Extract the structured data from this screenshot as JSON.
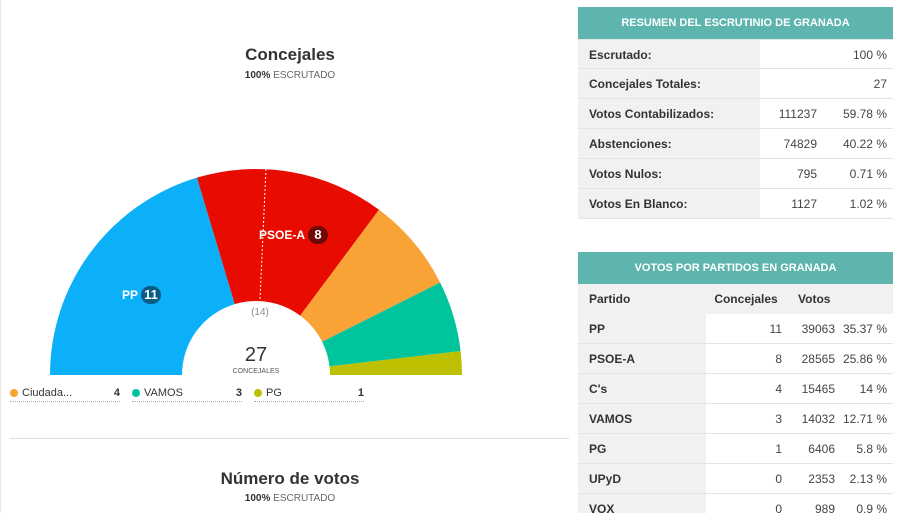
{
  "seats_chart": {
    "title": "Concejales",
    "scrutiny_pct": "100%",
    "scrutiny_label": "ESCRUTADO",
    "total_seats": "27",
    "total_label": "CONCEJALES",
    "majority": "(14)",
    "labels": [
      {
        "party": "PP",
        "seats": "11"
      },
      {
        "party": "PSOE-A",
        "seats": "8"
      }
    ]
  },
  "chart_data": {
    "type": "pie",
    "subtype": "hemicycle",
    "title": "Concejales",
    "total": 27,
    "majority": 14,
    "series": [
      {
        "name": "PP",
        "value": 11,
        "color": "#0cb0f8"
      },
      {
        "name": "PSOE-A",
        "value": 8,
        "color": "#e80c00"
      },
      {
        "name": "C's",
        "value": 4,
        "color": "#f9a236"
      },
      {
        "name": "VAMOS",
        "value": 3,
        "color": "#00c59c"
      },
      {
        "name": "PG",
        "value": 1,
        "color": "#bcc000"
      }
    ]
  },
  "legend": [
    {
      "name": "Ciudada...",
      "seats": "4",
      "color": "#f9a236"
    },
    {
      "name": "VAMOS",
      "seats": "3",
      "color": "#00c59c"
    },
    {
      "name": "PG",
      "seats": "1",
      "color": "#bcc000"
    }
  ],
  "votes_section": {
    "title": "Número de votos",
    "scrutiny_pct": "100%",
    "scrutiny_label": "ESCRUTADO"
  },
  "summary": {
    "header": "RESUMEN DEL ESCRUTINIO DE GRANADA",
    "rows": [
      {
        "label": "Escrutado:",
        "value": "100 %"
      },
      {
        "label": "Concejales Totales:",
        "value": "27"
      },
      {
        "label": "Votos Contabilizados:",
        "count": "111237",
        "pct": "59.78 %"
      },
      {
        "label": "Abstenciones:",
        "count": "74829",
        "pct": "40.22 %"
      },
      {
        "label": "Votos Nulos:",
        "count": "795",
        "pct": "0.71 %"
      },
      {
        "label": "Votos En Blanco:",
        "count": "1127",
        "pct": "1.02 %"
      }
    ]
  },
  "parties": {
    "header": "VOTOS POR PARTIDOS EN GRANADA",
    "columns": {
      "party": "Partido",
      "seats": "Concejales",
      "votes": "Votos"
    },
    "rows": [
      {
        "party": "PP",
        "seats": "11",
        "votes": "39063",
        "pct": "35.37 %"
      },
      {
        "party": "PSOE-A",
        "seats": "8",
        "votes": "28565",
        "pct": "25.86 %"
      },
      {
        "party": "C's",
        "seats": "4",
        "votes": "15465",
        "pct": "14 %"
      },
      {
        "party": "VAMOS",
        "seats": "3",
        "votes": "14032",
        "pct": "12.71 %"
      },
      {
        "party": "PG",
        "seats": "1",
        "votes": "6406",
        "pct": "5.8 %"
      },
      {
        "party": "UPyD",
        "seats": "0",
        "votes": "2353",
        "pct": "2.13 %"
      },
      {
        "party": "VOX",
        "seats": "0",
        "votes": "989",
        "pct": "0.9 %"
      }
    ]
  }
}
